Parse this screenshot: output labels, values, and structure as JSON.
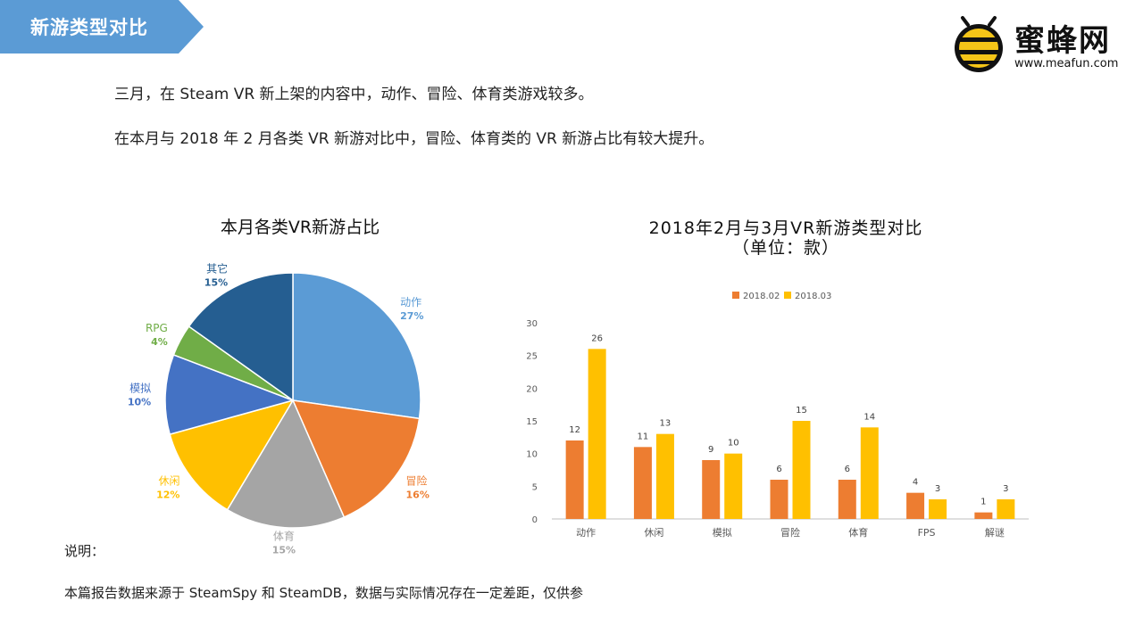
{
  "header": {
    "section_title": "新游类型对比",
    "logo_name": "蜜蜂网",
    "logo_url": "www.meafun.com"
  },
  "body": {
    "p1": "三月，在 Steam VR 新上架的内容中，动作、冒险、体育类游戏较多。",
    "p2": "在本月与 2018 年 2 月各类 VR 新游对比中，冒险、体育类的 VR 新游占比有较大提升。",
    "note_label": "说明：",
    "note_text": "本篇报告数据来源于 SteamSpy 和 SteamDB，数据与实际情况存在一定差距，仅供参"
  },
  "colors": {
    "banner": "#5b9bd5",
    "bar_feb": "#ed7d31",
    "bar_mar": "#ffc000"
  },
  "chart_data": [
    {
      "type": "pie",
      "title": "本月各类VR新游占比",
      "slices": [
        {
          "label": "动作",
          "value": 27,
          "pct": "27%",
          "color": "#5b9bd5"
        },
        {
          "label": "冒险",
          "value": 16,
          "pct": "16%",
          "color": "#ed7d31"
        },
        {
          "label": "体育",
          "value": 15,
          "pct": "15%",
          "color": "#a5a5a5"
        },
        {
          "label": "休闲",
          "value": 12,
          "pct": "12%",
          "color": "#ffc000"
        },
        {
          "label": "模拟",
          "value": 10,
          "pct": "10%",
          "color": "#4472c4"
        },
        {
          "label": "RPG",
          "value": 4,
          "pct": "4%",
          "color": "#70ad47"
        },
        {
          "label": "其它",
          "value": 15,
          "pct": "15%",
          "color": "#255e91"
        }
      ]
    },
    {
      "type": "bar",
      "title": "2018年2月与3月VR新游类型对比",
      "subtitle": "（单位：款）",
      "categories": [
        "动作",
        "休闲",
        "模拟",
        "冒险",
        "体育",
        "FPS",
        "解谜"
      ],
      "series": [
        {
          "name": "2018.02",
          "values": [
            12,
            11,
            9,
            6,
            6,
            4,
            1
          ],
          "color": "#ed7d31"
        },
        {
          "name": "2018.03",
          "values": [
            26,
            13,
            10,
            15,
            14,
            3,
            3
          ],
          "color": "#ffc000"
        }
      ],
      "ylim": [
        0,
        30
      ],
      "yticks": [
        0,
        5,
        10,
        15,
        20,
        25,
        30
      ],
      "legend": "top-center",
      "grid": false
    }
  ]
}
